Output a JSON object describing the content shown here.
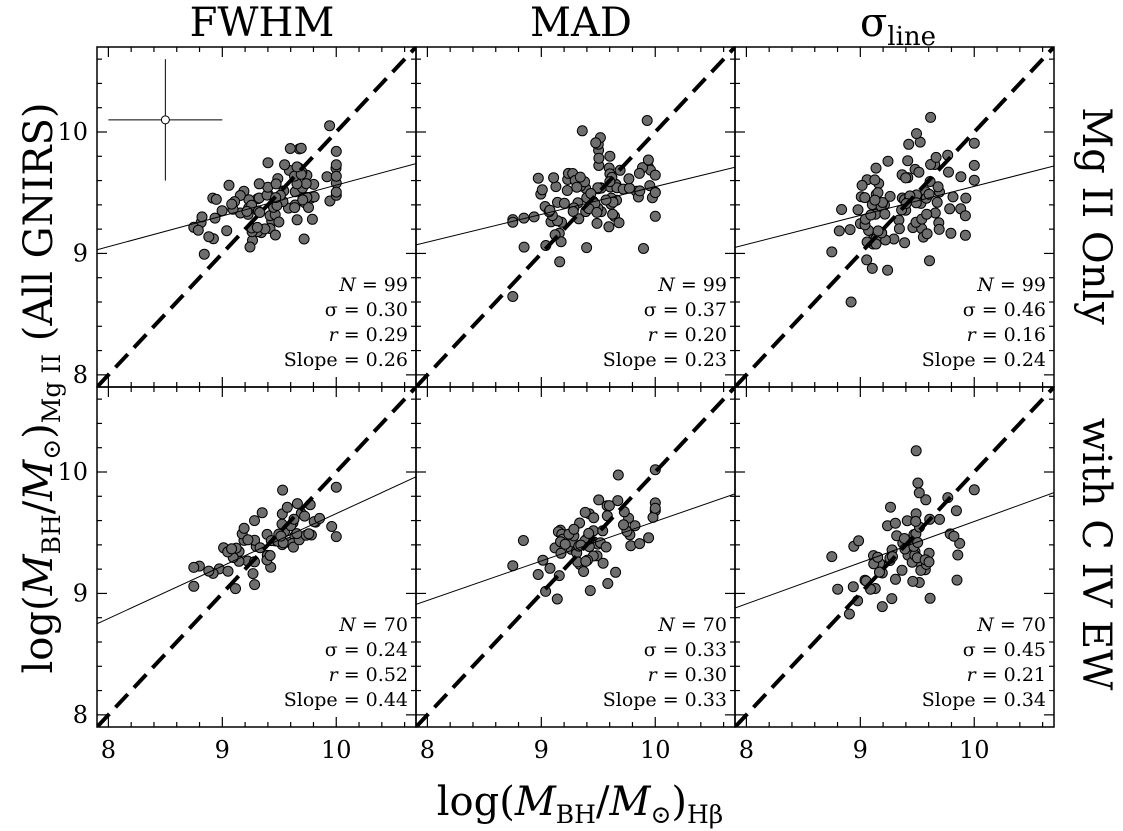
{
  "figure": {
    "col_titles": [
      "FWHM",
      "MAD",
      "σ",
      "line"
    ],
    "row_titles": [
      "Mg II Only",
      "with C IV EW"
    ],
    "ylabel": {
      "p1": "log(",
      "m1": "M",
      "s1": "BH",
      "p2": "/",
      "m2": "M",
      "s2": "⊙",
      "p3": ")",
      "s3": "Mg II",
      "p4": " (All GNIRS)"
    },
    "xlabel": {
      "p1": "log(",
      "m1": "M",
      "s1": "BH",
      "p2": "/",
      "m2": "M",
      "s2": "⊙",
      "p3": ")",
      "s3": "Hβ"
    },
    "stat_labels": {
      "n": "N",
      "sigma": "σ",
      "r": "r",
      "slope": "Slope"
    },
    "colors": {
      "points": "#6e6e6e",
      "lines": "#000000"
    }
  },
  "chart_data": [
    {
      "type": "scatter",
      "row": 0,
      "col": 0,
      "column": "FWHM",
      "row_label": "Mg II Only",
      "xlim": [
        7.9,
        10.7
      ],
      "ylim": [
        7.9,
        10.7
      ],
      "xticks": [
        8,
        9,
        10
      ],
      "yticks": [
        8,
        9,
        10
      ],
      "stats": {
        "N": "99",
        "sigma": "0.30",
        "r": "0.29",
        "slope": "0.26"
      },
      "fit": {
        "x": [
          7.9,
          10.7
        ],
        "y": [
          9.03,
          9.74
        ]
      },
      "errorbar": {
        "x": 8.5,
        "y": 10.1,
        "xerr": 0.5,
        "yerr": 0.5
      }
    },
    {
      "type": "scatter",
      "row": 0,
      "col": 1,
      "column": "MAD",
      "row_label": "Mg II Only",
      "xlim": [
        7.9,
        10.7
      ],
      "ylim": [
        7.9,
        10.7
      ],
      "xticks": [
        8,
        9,
        10
      ],
      "yticks": [
        8,
        9,
        10
      ],
      "stats": {
        "N": "99",
        "sigma": "0.37",
        "r": "0.20",
        "slope": "0.23"
      },
      "fit": {
        "x": [
          7.9,
          10.7
        ],
        "y": [
          9.07,
          9.71
        ]
      }
    },
    {
      "type": "scatter",
      "row": 0,
      "col": 2,
      "column": "σline",
      "row_label": "Mg II Only",
      "xlim": [
        7.9,
        10.7
      ],
      "ylim": [
        7.9,
        10.7
      ],
      "xticks": [
        8,
        9,
        10
      ],
      "yticks": [
        8,
        9,
        10
      ],
      "stats": {
        "N": "99",
        "sigma": "0.46",
        "r": "0.16",
        "slope": "0.24"
      },
      "fit": {
        "x": [
          7.9,
          10.7
        ],
        "y": [
          9.05,
          9.72
        ]
      }
    },
    {
      "type": "scatter",
      "row": 1,
      "col": 0,
      "column": "FWHM",
      "row_label": "with C IV EW",
      "xlim": [
        7.9,
        10.7
      ],
      "ylim": [
        7.9,
        10.7
      ],
      "xticks": [
        8,
        9,
        10
      ],
      "yticks": [
        8,
        9,
        10
      ],
      "stats": {
        "N": "70",
        "sigma": "0.24",
        "r": "0.52",
        "slope": "0.44"
      },
      "fit": {
        "x": [
          7.9,
          10.7
        ],
        "y": [
          8.75,
          9.96
        ]
      }
    },
    {
      "type": "scatter",
      "row": 1,
      "col": 1,
      "column": "MAD",
      "row_label": "with C IV EW",
      "xlim": [
        7.9,
        10.7
      ],
      "ylim": [
        7.9,
        10.7
      ],
      "xticks": [
        8,
        9,
        10
      ],
      "yticks": [
        8,
        9,
        10
      ],
      "stats": {
        "N": "70",
        "sigma": "0.33",
        "r": "0.30",
        "slope": "0.33"
      },
      "fit": {
        "x": [
          7.9,
          10.7
        ],
        "y": [
          8.91,
          9.82
        ]
      }
    },
    {
      "type": "scatter",
      "row": 1,
      "col": 2,
      "column": "σline",
      "row_label": "with C IV EW",
      "xlim": [
        7.9,
        10.7
      ],
      "ylim": [
        7.9,
        10.7
      ],
      "xticks": [
        8,
        9,
        10
      ],
      "yticks": [
        8,
        9,
        10
      ],
      "stats": {
        "N": "70",
        "sigma": "0.45",
        "r": "0.21",
        "slope": "0.34"
      },
      "fit": {
        "x": [
          7.9,
          10.7
        ],
        "y": [
          8.88,
          9.83
        ]
      }
    }
  ]
}
